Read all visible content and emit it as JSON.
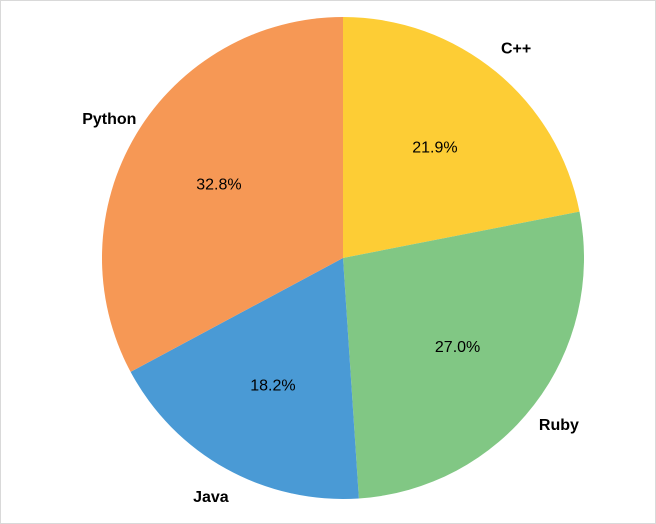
{
  "chart_data": {
    "type": "pie",
    "slices": [
      {
        "label": "C++",
        "value": 21.9,
        "pct_label": "21.9%",
        "color": "#fdcd35"
      },
      {
        "label": "Ruby",
        "value": 27.0,
        "pct_label": "27.0%",
        "color": "#81c784"
      },
      {
        "label": "Java",
        "value": 18.2,
        "pct_label": "18.2%",
        "color": "#4a9ad5"
      },
      {
        "label": "Python",
        "value": 32.8,
        "pct_label": "32.8%",
        "color": "#f69855"
      }
    ],
    "start_angle_deg": 90,
    "direction": "clockwise",
    "legend": "none"
  }
}
